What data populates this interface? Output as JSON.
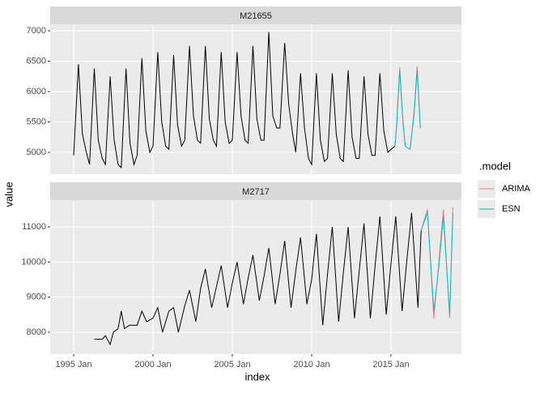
{
  "chart_data": {
    "type": "line",
    "x_label": "index",
    "y_label": "value",
    "legend_title": ".model",
    "legend_position": "right",
    "grid": true,
    "xlim": [
      1993.52,
      2019.44
    ],
    "xticks": [
      {
        "value": 1995,
        "label": "1995 Jan"
      },
      {
        "value": 2000,
        "label": "2000 Jan"
      },
      {
        "value": 2005,
        "label": "2005 Jan"
      },
      {
        "value": 2010,
        "label": "2010 Jan"
      },
      {
        "value": 2015,
        "label": "2015 Jan"
      }
    ],
    "legend": [
      {
        "name": "ARIMA",
        "color": "#F8766D"
      },
      {
        "name": "ESN",
        "color": "#00BFC4"
      }
    ],
    "facets": [
      {
        "title": "M21655",
        "ylim": [
          4640,
          7107
        ],
        "yticks": [
          5000,
          5500,
          6000,
          6500,
          7000
        ],
        "series": [
          {
            "color": "#000000",
            "x": [
              1995,
              1995.3,
              1995.55,
              1995.8,
              1996,
              1996.3,
              1996.55,
              1996.8,
              1997,
              1997.3,
              1997.55,
              1997.8,
              1998,
              1998.3,
              1998.55,
              1998.8,
              1999,
              1999.3,
              1999.55,
              1999.8,
              2000,
              2000.3,
              2000.55,
              2000.8,
              2001,
              2001.3,
              2001.55,
              2001.8,
              2002,
              2002.3,
              2002.55,
              2002.8,
              2003,
              2003.3,
              2003.55,
              2003.8,
              2004,
              2004.3,
              2004.55,
              2004.8,
              2005,
              2005.3,
              2005.55,
              2005.8,
              2006,
              2006.3,
              2006.55,
              2006.8,
              2007,
              2007.3,
              2007.55,
              2007.8,
              2008,
              2008.3,
              2008.55,
              2008.8,
              2009,
              2009.3,
              2009.55,
              2009.8,
              2010,
              2010.3,
              2010.55,
              2010.8,
              2011,
              2011.3,
              2011.55,
              2011.8,
              2012,
              2012.3,
              2012.55,
              2012.8,
              2013,
              2013.3,
              2013.55,
              2013.8,
              2014,
              2014.3,
              2014.55,
              2014.8,
              2015,
              2015.25
            ],
            "values": [
              4950,
              6450,
              5300,
              5000,
              4800,
              6380,
              5200,
              4900,
              4800,
              6250,
              5200,
              4800,
              4750,
              6380,
              5150,
              4800,
              4950,
              6550,
              5350,
              5000,
              5100,
              6650,
              5500,
              5100,
              5050,
              6600,
              5450,
              5100,
              5200,
              6750,
              5600,
              5200,
              5150,
              6750,
              5550,
              5200,
              5100,
              6650,
              5500,
              5150,
              5200,
              6650,
              5600,
              5200,
              5150,
              6750,
              5550,
              5200,
              5200,
              6980,
              5600,
              5400,
              5400,
              6800,
              5800,
              5300,
              5000,
              6300,
              5400,
              4900,
              4800,
              6300,
              5200,
              4850,
              4900,
              6300,
              5300,
              4900,
              4850,
              6350,
              5250,
              4900,
              4900,
              6250,
              5300,
              4950,
              4950,
              6300,
              5350,
              5000,
              5050,
              5100
            ]
          },
          {
            "name": "ARIMA",
            "color": "#F8766D",
            "x": [
              2015.25,
              2015.35,
              2015.55,
              2015.75,
              2015.9,
              2016.2,
              2016.45,
              2016.65,
              2016.85
            ],
            "values": [
              5100,
              5450,
              6400,
              5550,
              5100,
              5050,
              5650,
              6420,
              5400
            ]
          },
          {
            "name": "ESN",
            "color": "#00BFC4",
            "x": [
              2015.25,
              2015.35,
              2015.55,
              2015.75,
              2015.9,
              2016.2,
              2016.45,
              2016.65,
              2016.85
            ],
            "values": [
              5100,
              5400,
              6350,
              5500,
              5100,
              5050,
              5600,
              6350,
              5400
            ]
          }
        ]
      },
      {
        "title": "M2717",
        "ylim": [
          7377,
          11762
        ],
        "yticks": [
          8000,
          9000,
          10000,
          11000
        ],
        "series": [
          {
            "color": "#000000",
            "x": [
              1996.3,
              1996.8,
              1997,
              1997.3,
              1997.5,
              1997.8,
              1998,
              1998.2,
              1998.5,
              1999,
              1999.3,
              1999.6,
              2000,
              2000.3,
              2000.6,
              2001,
              2001.3,
              2001.6,
              2002,
              2002.3,
              2002.7,
              2003,
              2003.3,
              2003.7,
              2004,
              2004.3,
              2004.7,
              2005,
              2005.3,
              2005.7,
              2006,
              2006.3,
              2006.7,
              2007,
              2007.3,
              2007.7,
              2008,
              2008.3,
              2008.7,
              2009,
              2009.3,
              2009.7,
              2010,
              2010.3,
              2010.7,
              2011,
              2011.3,
              2011.7,
              2012,
              2012.3,
              2012.7,
              2013,
              2013.3,
              2013.7,
              2014,
              2014.3,
              2014.7,
              2015,
              2015.3,
              2015.7,
              2016,
              2016.3,
              2016.7,
              2016.9
            ],
            "values": [
              7800,
              7800,
              7900,
              7650,
              8000,
              8100,
              8600,
              8100,
              8200,
              8200,
              8600,
              8300,
              8400,
              8700,
              8000,
              8600,
              8700,
              8000,
              8750,
              9200,
              8300,
              9250,
              9800,
              8700,
              9300,
              9900,
              8700,
              9400,
              10000,
              8800,
              9550,
              10200,
              8900,
              9600,
              10400,
              8800,
              9650,
              10600,
              8700,
              9750,
              10700,
              8800,
              9500,
              10800,
              8200,
              9650,
              11000,
              8300,
              9700,
              11000,
              8400,
              9750,
              11100,
              8400,
              9900,
              11300,
              8500,
              9950,
              11300,
              8600,
              10050,
              11400,
              8700,
              10900
            ]
          },
          {
            "name": "ARIMA",
            "color": "#F8766D",
            "x": [
              2016.9,
              2017.3,
              2017.7,
              2018,
              2018.3,
              2018.7,
              2018.9
            ],
            "values": [
              10900,
              11500,
              8400,
              9900,
              11500,
              8400,
              11550
            ]
          },
          {
            "name": "ESN",
            "color": "#00BFC4",
            "x": [
              2016.9,
              2017.3,
              2017.7,
              2018,
              2018.3,
              2018.7,
              2018.9
            ],
            "values": [
              10900,
              11400,
              8600,
              9800,
              11300,
              8500,
              11400
            ]
          }
        ]
      }
    ]
  }
}
